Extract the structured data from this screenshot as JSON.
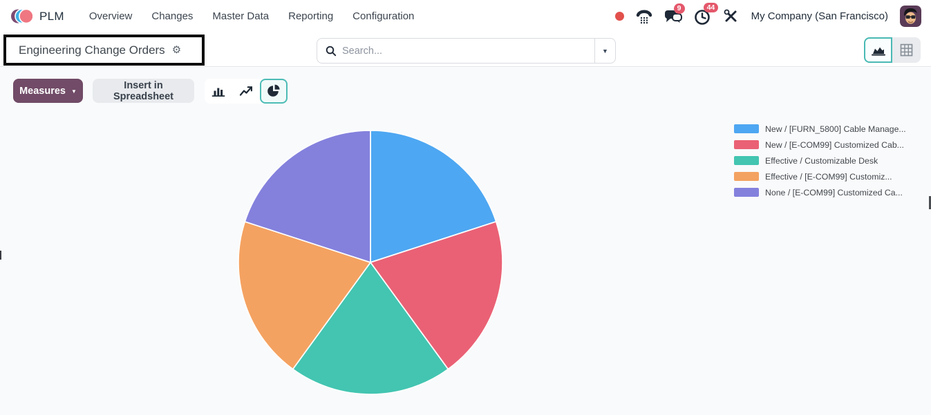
{
  "app": {
    "name": "PLM"
  },
  "nav": {
    "items": [
      "Overview",
      "Changes",
      "Master Data",
      "Reporting",
      "Configuration"
    ]
  },
  "topbar_right": {
    "messages_badge": "9",
    "activities_badge": "44",
    "company": "My Company (San Francisco)"
  },
  "control_panel": {
    "title": "Engineering Change Orders",
    "gear_glyph": "⚙",
    "search_placeholder": "Search...",
    "search_caret": "▼"
  },
  "toolbar": {
    "measures_label": "Measures",
    "measures_caret": "▼",
    "insert_label": "Insert in Spreadsheet"
  },
  "chart_data": {
    "type": "pie",
    "title": "Engineering Change Orders",
    "categories": [
      "New / [FURN_5800] Cable Manage...",
      "New / [E-COM99] Customized Cab...",
      "Effective / Customizable Desk",
      "Effective / [E-COM99] Customiz...",
      "None / [E-COM99] Customized Ca..."
    ],
    "values": [
      20,
      20,
      20,
      20,
      20
    ],
    "unit": "percent (estimated, equal slices)",
    "colors": [
      "#4EA7F2",
      "#EA6175",
      "#43C5B1",
      "#F4A261",
      "#8481DD"
    ],
    "legend_position": "top-right",
    "start_angle_deg": 0,
    "direction": "clockwise"
  },
  "colors": {
    "primary_button": "#714B67",
    "badge_red": "#e4586b",
    "presence_red": "#e2504c",
    "selected_teal": "#49b9b4",
    "content_bg": "#f9fafb"
  }
}
